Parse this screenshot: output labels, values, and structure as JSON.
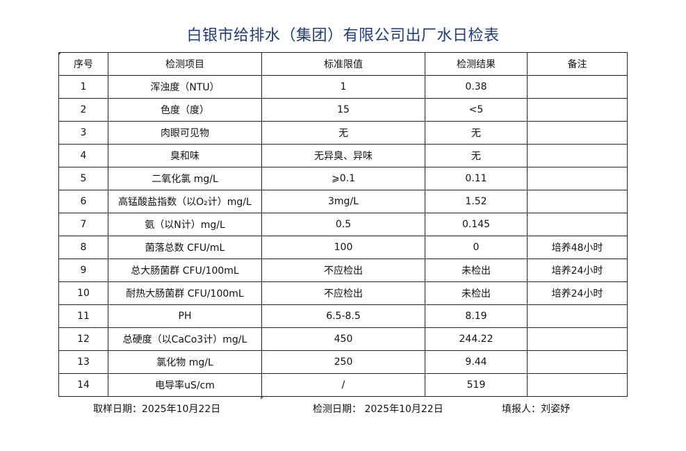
{
  "title": "白银市给排水（集团）有限公司出厂水日检表",
  "table": {
    "headers": [
      "序号",
      "检测项目",
      "标准限值",
      "检测结果",
      "备注"
    ],
    "rows": [
      [
        "1",
        "浑浊度（NTU）",
        "1",
        "0.38",
        ""
      ],
      [
        "2",
        "色度（度）",
        "15",
        "<5",
        ""
      ],
      [
        "3",
        "肉眼可见物",
        "无",
        "无",
        ""
      ],
      [
        "4",
        "臭和味",
        "无异臭、异味",
        "无",
        ""
      ],
      [
        "5",
        "二氧化氯 mg/L",
        "⩾0.1",
        "0.11",
        ""
      ],
      [
        "6",
        "高锰酸盐指数（以O₂计）mg/L",
        "3mg/L",
        "1.52",
        ""
      ],
      [
        "7",
        "氨（以N计）mg/L",
        "0.5",
        "0.145",
        ""
      ],
      [
        "8",
        "菌落总数 CFU/mL",
        "100",
        "0",
        "培养48小时"
      ],
      [
        "9",
        "总大肠菌群 CFU/100mL",
        "不应检出",
        "未检出",
        "培养24小时"
      ],
      [
        "10",
        "耐热大肠菌群 CFU/100mL",
        "不应检出",
        "未检出",
        "培养24小时"
      ],
      [
        "11",
        "PH",
        "6.5-8.5",
        "8.19",
        ""
      ],
      [
        "12",
        "总硬度（以CaCo3计）mg/L",
        "450",
        "244.22",
        ""
      ],
      [
        "13",
        "氯化物 mg/L",
        "250",
        "9.44",
        ""
      ],
      [
        "14",
        "电导率uS/cm",
        "/",
        "519",
        ""
      ]
    ]
  },
  "footer": {
    "sampling_date": "取样日期：2025年10月22日",
    "test_date": "检测日期：  2025年10月22日",
    "reporter": "填报人：刘姿妤"
  }
}
